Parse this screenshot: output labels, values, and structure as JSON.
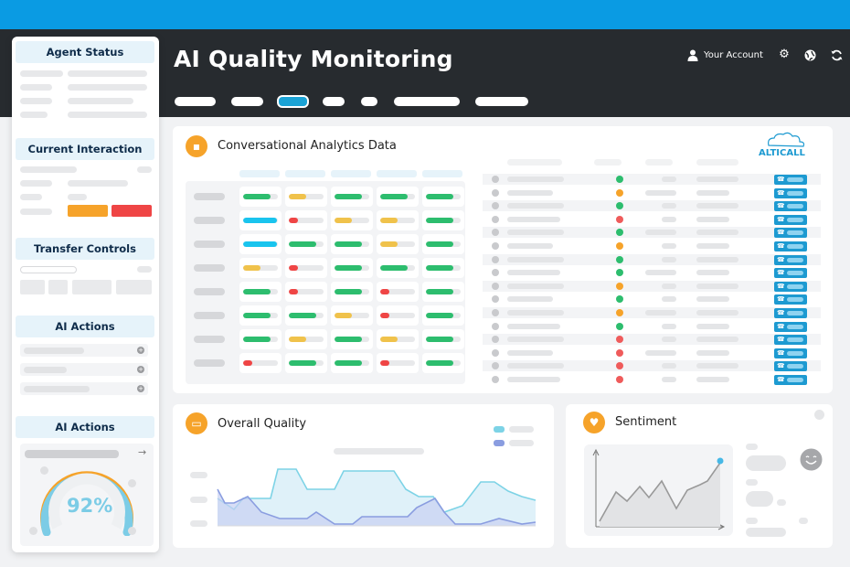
{
  "header": {
    "title": "AI Quality Monitoring",
    "account_label": "Your Account",
    "icons": [
      "user-icon",
      "gear-icon",
      "globe-icon",
      "refresh-icon"
    ]
  },
  "sidebar": {
    "sections": [
      {
        "title": "Agent Status"
      },
      {
        "title": "Current Interaction"
      },
      {
        "title": "Transfer Controls"
      },
      {
        "title": "AI Actions"
      },
      {
        "title": "AI Actions"
      }
    ],
    "gauge_value": "92%",
    "gauge_fraction": 0.92
  },
  "analytics": {
    "title": "Conversational Analytics Data",
    "logo_text": "ALTICALL",
    "grid": [
      [
        [
          "#2dbd6e",
          0.8
        ],
        [
          "#f0c24b",
          0.5
        ],
        [
          "#2dbd6e",
          0.8
        ],
        [
          "#2dbd6e",
          0.8
        ],
        [
          "#2dbd6e",
          0.8
        ]
      ],
      [
        [
          "#19c4ee",
          0.98
        ],
        [
          "#ef4545",
          0.25
        ],
        [
          "#f0c24b",
          0.5
        ],
        [
          "#f0c24b",
          0.5
        ],
        [
          "#2dbd6e",
          0.8
        ]
      ],
      [
        [
          "#19c4ee",
          0.98
        ],
        [
          "#2dbd6e",
          0.8
        ],
        [
          "#2dbd6e",
          0.8
        ],
        [
          "#f0c24b",
          0.5
        ],
        [
          "#2dbd6e",
          0.8
        ]
      ],
      [
        [
          "#f0c24b",
          0.5
        ],
        [
          "#ef4545",
          0.25
        ],
        [
          "#2dbd6e",
          0.8
        ],
        [
          "#2dbd6e",
          0.8
        ],
        [
          "#2dbd6e",
          0.8
        ]
      ],
      [
        [
          "#2dbd6e",
          0.8
        ],
        [
          "#ef4545",
          0.25
        ],
        [
          "#2dbd6e",
          0.8
        ],
        [
          "#ef4545",
          0.25
        ],
        [
          "#2dbd6e",
          0.8
        ]
      ],
      [
        [
          "#2dbd6e",
          0.8
        ],
        [
          "#2dbd6e",
          0.8
        ],
        [
          "#f0c24b",
          0.5
        ],
        [
          "#ef4545",
          0.25
        ],
        [
          "#2dbd6e",
          0.8
        ]
      ],
      [
        [
          "#2dbd6e",
          0.8
        ],
        [
          "#f0c24b",
          0.5
        ],
        [
          "#2dbd6e",
          0.8
        ],
        [
          "#f0c24b",
          0.5
        ],
        [
          "#2dbd6e",
          0.8
        ]
      ],
      [
        [
          "#ef4545",
          0.25
        ],
        [
          "#2dbd6e",
          0.8
        ],
        [
          "#2dbd6e",
          0.8
        ],
        [
          "#ef4545",
          0.25
        ],
        [
          "#2dbd6e",
          0.8
        ]
      ]
    ],
    "list_status_colors": [
      "#2dbd6e",
      "#f6a32a",
      "#2dbd6e",
      "#ef5b5b",
      "#2dbd6e",
      "#f6a32a",
      "#2dbd6e",
      "#2dbd6e",
      "#f6a32a",
      "#2dbd6e",
      "#f6a32a",
      "#2dbd6e",
      "#ef5b5b",
      "#ef5b5b",
      "#ef5b5b",
      "#ef5b5b"
    ]
  },
  "quality": {
    "title": "Overall Quality",
    "colors": {
      "a": "#7dd3e6",
      "b": "#8a9de0"
    }
  },
  "sentiment": {
    "title": "Sentiment"
  },
  "colors": {
    "accent": "#0a9be3",
    "orange": "#f6a32a",
    "dark": "#272b2f"
  }
}
